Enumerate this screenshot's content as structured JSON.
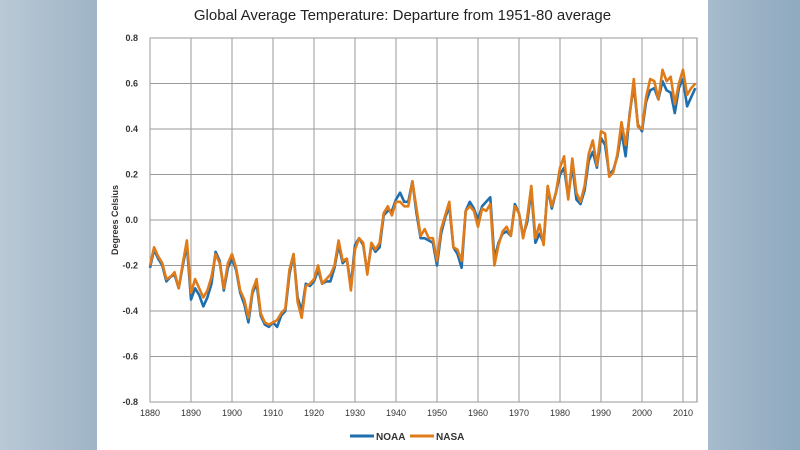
{
  "chart_data": {
    "type": "line",
    "title": "Global Average Temperature: Departure from 1951-80 average",
    "xlabel": "",
    "ylabel": "Degrees Celsius",
    "xlim": [
      1880,
      2013
    ],
    "ylim": [
      -0.8,
      0.8
    ],
    "grid": true,
    "legend": "bottom",
    "x_ticks": [
      "1880",
      "1890",
      "1900",
      "1910",
      "1920",
      "1930",
      "1940",
      "1950",
      "1960",
      "1970",
      "1980",
      "1990",
      "2000",
      "2010"
    ],
    "y_ticks": [
      "0.8",
      "0.6",
      "0.4",
      "0.2",
      "0.0",
      "-0.2",
      "-0.4",
      "-0.6",
      "-0.8"
    ],
    "x_start": 1880,
    "series": [
      {
        "name": "NOAA",
        "color": "#1f6fae",
        "values": [
          -0.21,
          -0.13,
          -0.17,
          -0.2,
          -0.27,
          -0.25,
          -0.24,
          -0.3,
          -0.2,
          -0.11,
          -0.35,
          -0.3,
          -0.33,
          -0.38,
          -0.34,
          -0.28,
          -0.14,
          -0.18,
          -0.31,
          -0.21,
          -0.17,
          -0.22,
          -0.32,
          -0.37,
          -0.45,
          -0.32,
          -0.28,
          -0.42,
          -0.46,
          -0.47,
          -0.45,
          -0.47,
          -0.42,
          -0.4,
          -0.24,
          -0.15,
          -0.34,
          -0.4,
          -0.28,
          -0.29,
          -0.27,
          -0.22,
          -0.28,
          -0.27,
          -0.27,
          -0.21,
          -0.11,
          -0.19,
          -0.17,
          -0.29,
          -0.11,
          -0.08,
          -0.11,
          -0.23,
          -0.11,
          -0.14,
          -0.12,
          0.02,
          0.04,
          0.04,
          0.09,
          0.12,
          0.08,
          0.08,
          0.17,
          0.03,
          -0.08,
          -0.08,
          -0.09,
          -0.1,
          -0.2,
          -0.06,
          0.01,
          0.06,
          -0.12,
          -0.15,
          -0.21,
          0.04,
          0.08,
          0.05,
          0.0,
          0.06,
          0.08,
          0.1,
          -0.17,
          -0.1,
          -0.06,
          -0.05,
          -0.07,
          0.07,
          0.03,
          -0.07,
          -0.01,
          0.13,
          -0.1,
          -0.06,
          -0.1,
          0.14,
          0.05,
          0.12,
          0.2,
          0.23,
          0.1,
          0.24,
          0.09,
          0.07,
          0.13,
          0.26,
          0.3,
          0.23,
          0.36,
          0.33,
          0.2,
          0.22,
          0.28,
          0.39,
          0.28,
          0.47,
          0.59,
          0.42,
          0.39,
          0.52,
          0.57,
          0.58,
          0.53,
          0.61,
          0.57,
          0.56,
          0.47,
          0.58,
          0.62,
          0.5,
          0.54,
          0.58
        ]
      },
      {
        "name": "NASA",
        "color": "#e07b1a",
        "values": [
          -0.2,
          -0.12,
          -0.16,
          -0.19,
          -0.26,
          -0.25,
          -0.23,
          -0.3,
          -0.19,
          -0.09,
          -0.32,
          -0.26,
          -0.3,
          -0.34,
          -0.31,
          -0.25,
          -0.15,
          -0.19,
          -0.3,
          -0.19,
          -0.15,
          -0.21,
          -0.31,
          -0.35,
          -0.43,
          -0.31,
          -0.26,
          -0.41,
          -0.45,
          -0.46,
          -0.45,
          -0.44,
          -0.41,
          -0.39,
          -0.22,
          -0.15,
          -0.36,
          -0.43,
          -0.29,
          -0.28,
          -0.26,
          -0.2,
          -0.28,
          -0.26,
          -0.24,
          -0.2,
          -0.09,
          -0.18,
          -0.17,
          -0.31,
          -0.13,
          -0.08,
          -0.1,
          -0.24,
          -0.1,
          -0.13,
          -0.1,
          0.03,
          0.06,
          0.02,
          0.08,
          0.08,
          0.06,
          0.06,
          0.17,
          0.05,
          -0.07,
          -0.04,
          -0.08,
          -0.08,
          -0.18,
          -0.04,
          0.02,
          0.08,
          -0.12,
          -0.13,
          -0.18,
          0.04,
          0.06,
          0.04,
          -0.03,
          0.05,
          0.04,
          0.07,
          -0.2,
          -0.11,
          -0.05,
          -0.03,
          -0.07,
          0.06,
          0.03,
          -0.08,
          0.01,
          0.15,
          -0.08,
          -0.02,
          -0.11,
          0.15,
          0.06,
          0.12,
          0.23,
          0.28,
          0.09,
          0.27,
          0.12,
          0.08,
          0.15,
          0.29,
          0.35,
          0.24,
          0.39,
          0.38,
          0.19,
          0.21,
          0.29,
          0.43,
          0.33,
          0.46,
          0.62,
          0.41,
          0.4,
          0.54,
          0.62,
          0.61,
          0.53,
          0.66,
          0.61,
          0.63,
          0.51,
          0.6,
          0.66,
          0.55,
          0.58,
          0.6
        ]
      }
    ]
  }
}
